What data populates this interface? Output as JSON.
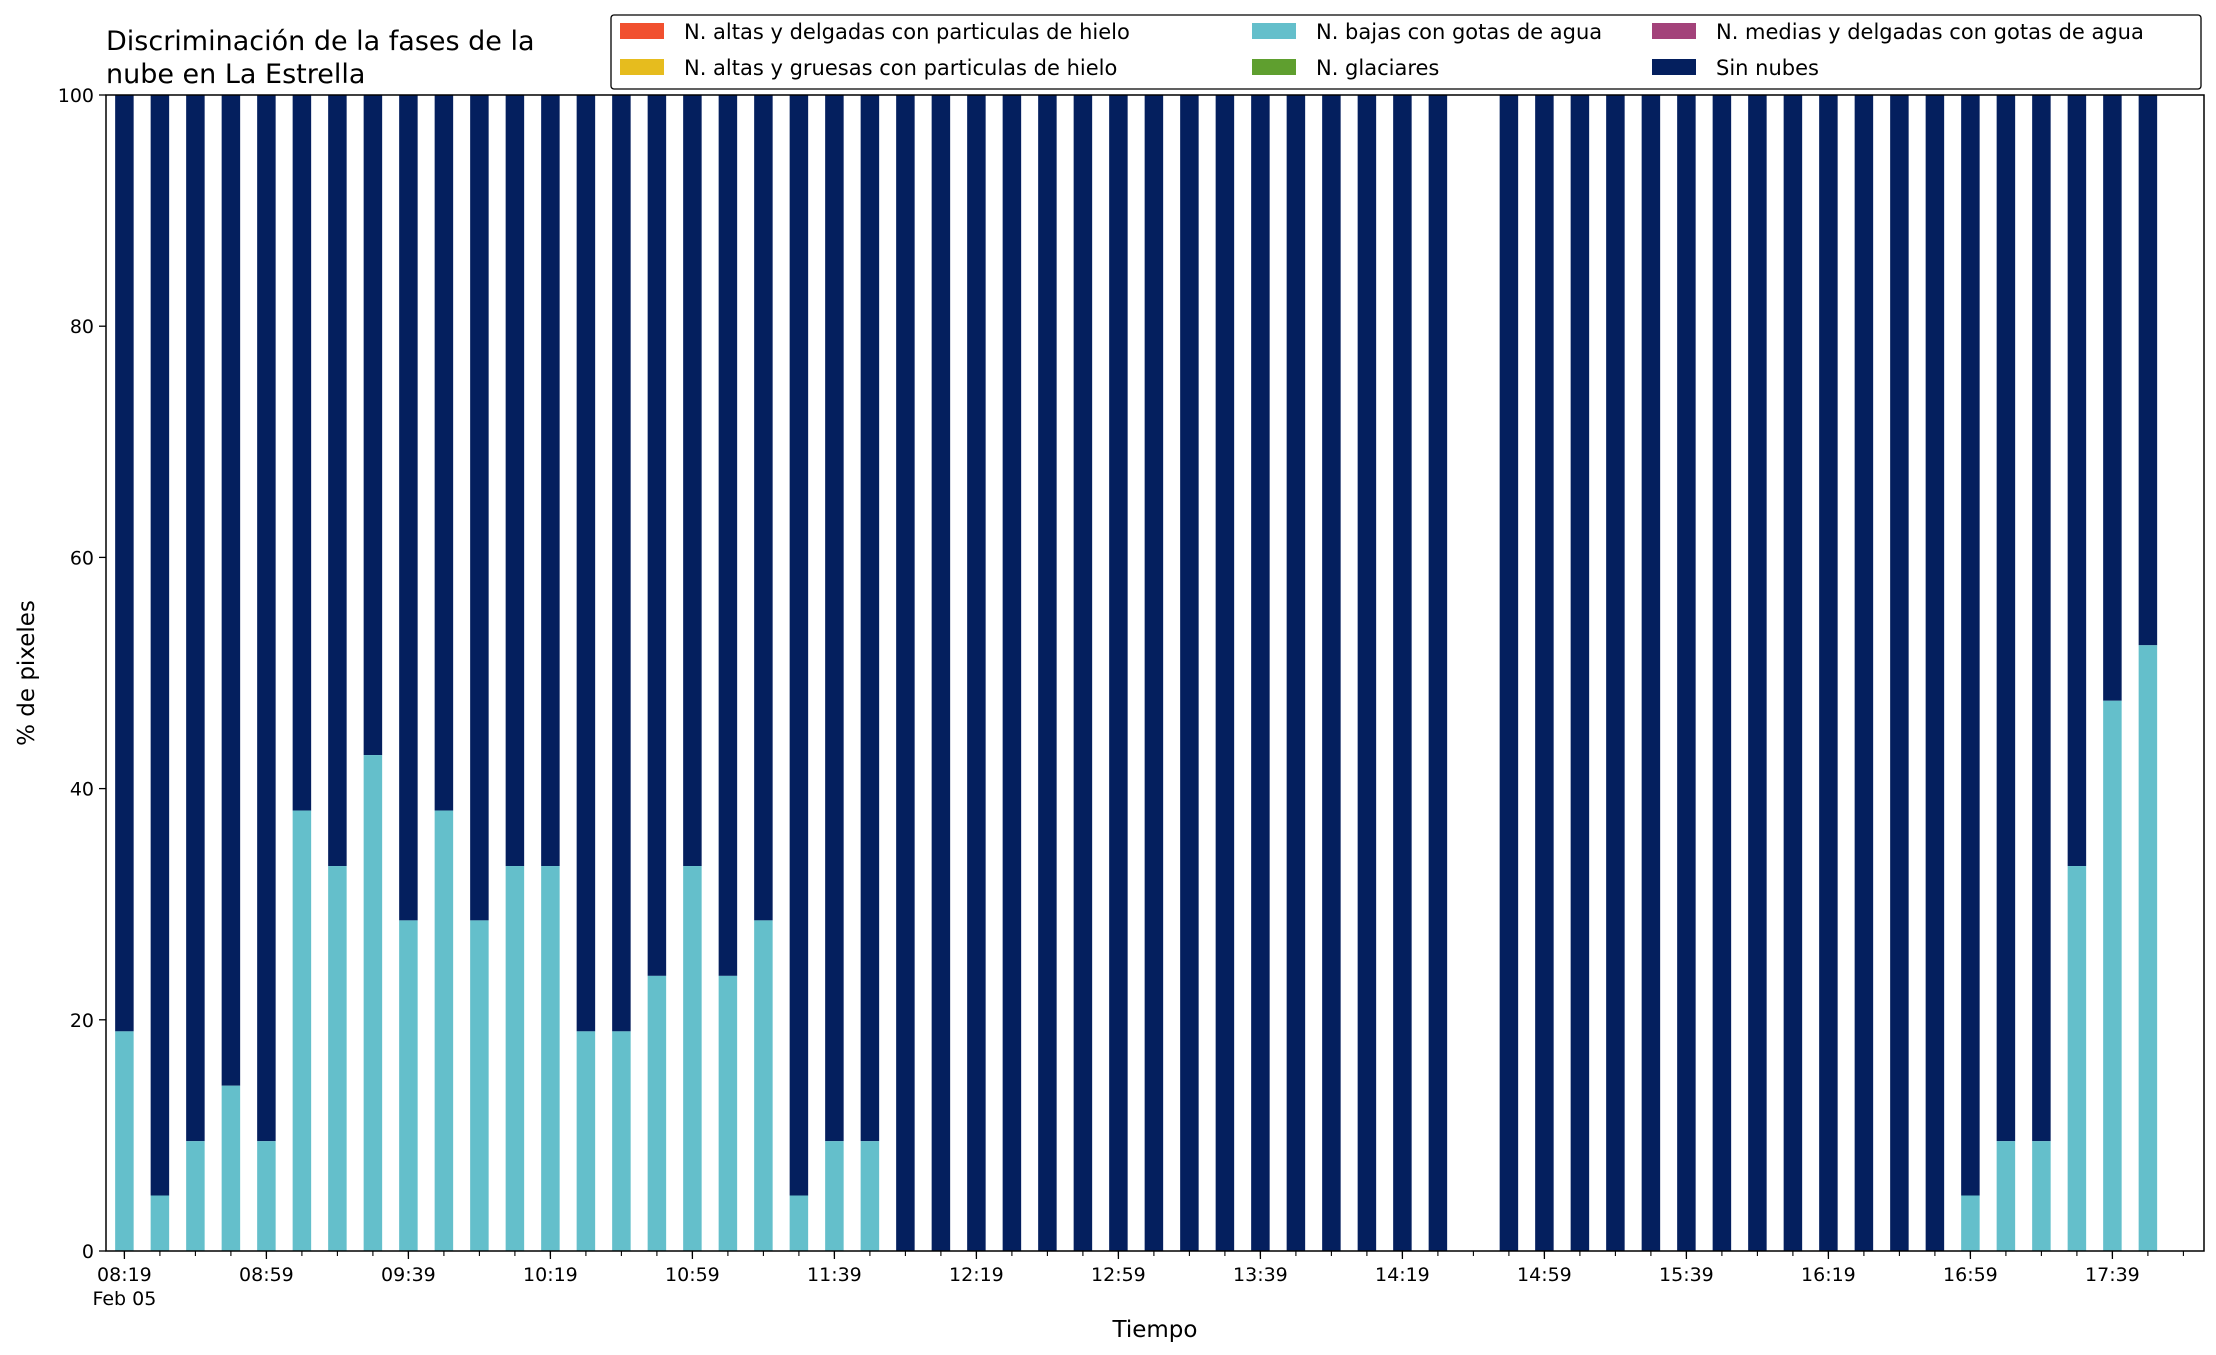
{
  "chart_data": {
    "type": "bar",
    "stacked": true,
    "title": [
      "Discriminación de la fases de la",
      "nube en La Estrella"
    ],
    "xlabel": "Tiempo",
    "ylabel": "% de pixeles",
    "ylim": [
      0,
      100
    ],
    "yticks": [
      0,
      20,
      40,
      60,
      80,
      100
    ],
    "grid": false,
    "legend_position": "top-right",
    "x_tick_labels": [
      "08:19",
      "08:59",
      "09:39",
      "10:19",
      "10:59",
      "11:39",
      "12:19",
      "12:59",
      "13:39",
      "14:19",
      "14:59",
      "15:39",
      "16:19",
      "16:59",
      "17:39"
    ],
    "x_tick_sublabel": "Feb 05",
    "x_start": "08:19",
    "x_interval_minutes": 10,
    "series": [
      {
        "name": "N. altas y delgadas con particulas de hielo",
        "color": "#f1502f"
      },
      {
        "name": "N. altas y gruesas con particulas de hielo",
        "color": "#e6bc1e"
      },
      {
        "name": "N. bajas con gotas de agua",
        "color": "#64bfcb"
      },
      {
        "name": "N. glaciares",
        "color": "#5f9f2f"
      },
      {
        "name": "N. medias y delgadas con gotas de agua",
        "color": "#a3427a"
      },
      {
        "name": "Sin nubes",
        "color": "#041f5e"
      }
    ],
    "times": [
      "08:19",
      "08:29",
      "08:39",
      "08:49",
      "08:59",
      "09:09",
      "09:19",
      "09:29",
      "09:39",
      "09:49",
      "09:59",
      "10:09",
      "10:19",
      "10:29",
      "10:39",
      "10:49",
      "10:59",
      "11:09",
      "11:19",
      "11:29",
      "11:39",
      "11:49",
      "11:59",
      "12:09",
      "12:19",
      "12:29",
      "12:39",
      "12:49",
      "12:59",
      "13:09",
      "13:19",
      "13:29",
      "13:39",
      "13:49",
      "13:59",
      "14:09",
      "14:19",
      "14:29",
      "14:49",
      "14:59",
      "15:09",
      "15:19",
      "15:29",
      "15:39",
      "15:49",
      "15:59",
      "16:09",
      "16:19",
      "16:29",
      "16:39",
      "16:49",
      "16:59",
      "17:09",
      "17:19",
      "17:29",
      "17:39",
      "17:49"
    ],
    "low_cloud_water": [
      19.0,
      4.8,
      9.5,
      14.3,
      9.5,
      38.1,
      33.3,
      42.9,
      28.6,
      38.1,
      28.6,
      33.3,
      33.3,
      19.0,
      19.0,
      23.8,
      33.3,
      23.8,
      28.6,
      4.8,
      9.5,
      9.5,
      0,
      0,
      0,
      0,
      0,
      0,
      0,
      0,
      0,
      0,
      0,
      0,
      0,
      0,
      0,
      0,
      0,
      0,
      0,
      0,
      0,
      0,
      0,
      0,
      0,
      0,
      0,
      0,
      0,
      4.8,
      9.5,
      9.5,
      33.3,
      47.6,
      52.4
    ]
  }
}
